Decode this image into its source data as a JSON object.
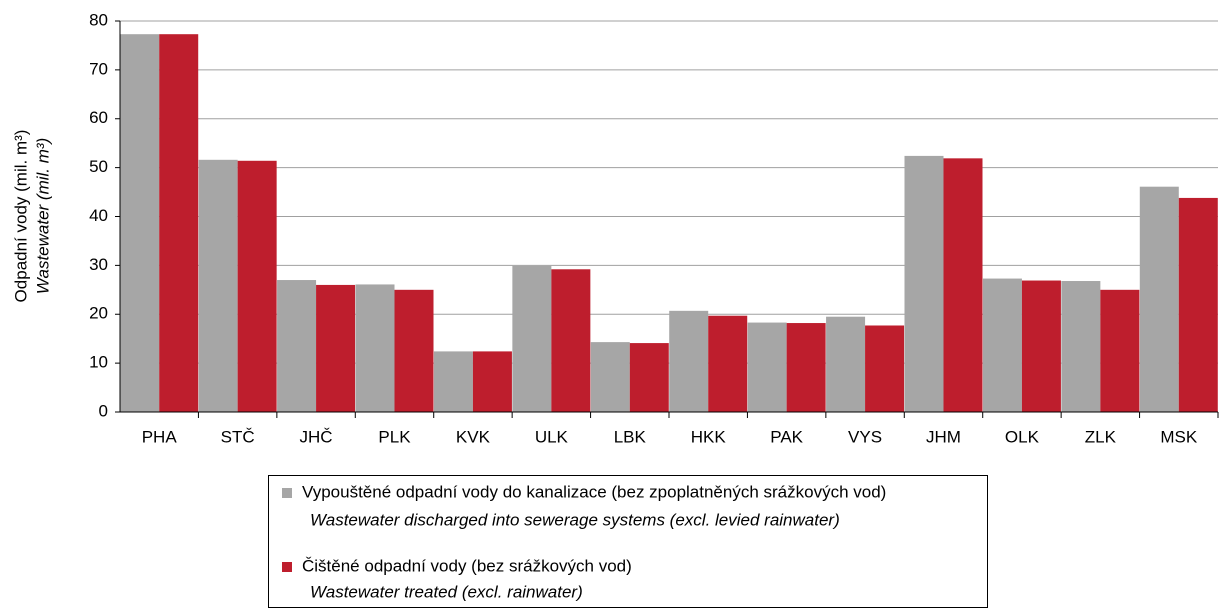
{
  "chart_data": {
    "type": "bar",
    "y_label": "Odpadní vody (mil. m³)",
    "y_label_en": "Wastewater (mil. m³)",
    "categories": [
      "PHA",
      "STČ",
      "JHČ",
      "PLK",
      "KVK",
      "ULK",
      "LBK",
      "HKK",
      "PAK",
      "VYS",
      "JHM",
      "OLK",
      "ZLK",
      "MSK"
    ],
    "series": [
      {
        "name": "Vypouštěné odpadní vody do kanalizace (bez zpoplatněných srážkových vod)",
        "name_en": "Wastewater discharged into sewerage systems (excl. levied rainwater)",
        "color": "#a6a6a6",
        "values": [
          77.3,
          51.6,
          27.0,
          26.1,
          12.4,
          29.9,
          14.3,
          20.7,
          18.3,
          19.5,
          52.4,
          27.3,
          26.8,
          46.1
        ]
      },
      {
        "name": "Čištěné odpadní vody (bez srážkových vod)",
        "name_en": "Wastewater treated (excl. rainwater)",
        "color": "#be1e2d",
        "values": [
          77.3,
          51.4,
          26.0,
          25.0,
          12.4,
          29.2,
          14.1,
          19.7,
          18.2,
          17.7,
          51.9,
          26.9,
          25.0,
          43.8
        ]
      }
    ],
    "ylim": [
      0,
      80
    ],
    "yticks": [
      0,
      10,
      20,
      30,
      40,
      50,
      60,
      70,
      80
    ],
    "grid": true
  }
}
